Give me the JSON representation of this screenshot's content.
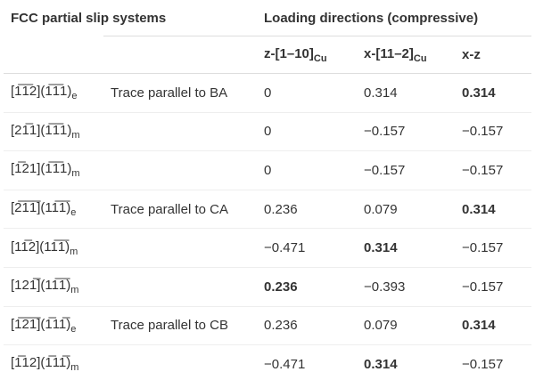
{
  "header": {
    "title": "FCC partial slip systems",
    "group": "Loading directions (compressive)",
    "columns": [
      {
        "text": "z-[1–10]",
        "sub": "Cu"
      },
      {
        "text": "x-[11–2]",
        "sub": "Cu"
      },
      {
        "text": "x-z"
      }
    ]
  },
  "table": {
    "rows": [
      {
        "system": "[1̅1̅2](1̅1̅1)",
        "sub": "e",
        "trace": "Trace parallel to BA",
        "values": [
          "0",
          "0.314",
          "0.314"
        ],
        "bold": [
          false,
          false,
          true
        ]
      },
      {
        "system": "[21̅1](1̅1̅1)",
        "sub": "m",
        "values": [
          "0",
          "−0.157",
          "−0.157"
        ],
        "bold": [
          false,
          false,
          false
        ]
      },
      {
        "system": "[1̅21](1̅1̅1)",
        "sub": "m",
        "values": [
          "0",
          "−0.157",
          "−0.157"
        ],
        "bold": [
          false,
          false,
          false
        ]
      },
      {
        "system": "[2̅1̅1̅](11̅1̅)",
        "sub": "e",
        "trace": "Trace parallel to CA",
        "values": [
          "0.236",
          "0.079",
          "0.314"
        ],
        "bold": [
          false,
          false,
          true
        ]
      },
      {
        "system": "[11̅2](11̅1̅)",
        "sub": "m",
        "values": [
          "−0.471",
          "0.314",
          "−0.157"
        ],
        "bold": [
          false,
          true,
          false
        ]
      },
      {
        "system": "[121̅](11̅1̅)",
        "sub": "m",
        "values": [
          "0.236",
          "−0.393",
          "−0.157"
        ],
        "bold": [
          true,
          false,
          false
        ]
      },
      {
        "system": "[1̅2̅1̅](1̅11̅)",
        "sub": "e",
        "trace": "Trace parallel to CB",
        "values": [
          "0.236",
          "0.079",
          "0.314"
        ],
        "bold": [
          false,
          false,
          true
        ]
      },
      {
        "system": "[1̅12](1̅11̅)",
        "sub": "m",
        "values": [
          "−0.471",
          "0.314",
          "−0.157"
        ],
        "bold": [
          false,
          true,
          false
        ]
      }
    ]
  }
}
